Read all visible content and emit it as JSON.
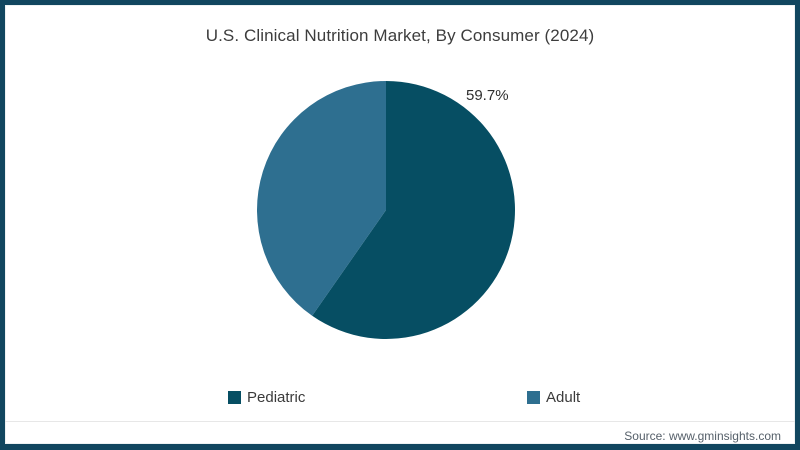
{
  "title": "U.S. Clinical Nutrition Market, By Consumer (2024)",
  "source": "Source: www.gminsights.com",
  "colors": {
    "frame": "#11465f",
    "pediatric": "#064e63",
    "adult": "#2e6f90",
    "title_text": "#3d3d3d",
    "source_text": "#56606a"
  },
  "chart_data": {
    "type": "pie",
    "title": "U.S. Clinical Nutrition Market, By Consumer (2024)",
    "labels": [
      "Pediatric",
      "Adult"
    ],
    "values": [
      59.7,
      40.3
    ],
    "colors": [
      "#064e63",
      "#2e6f90"
    ],
    "datalabels": [
      "59.7%"
    ],
    "start_angle_deg": -90,
    "direction": "clockwise",
    "legend_position": "bottom"
  }
}
